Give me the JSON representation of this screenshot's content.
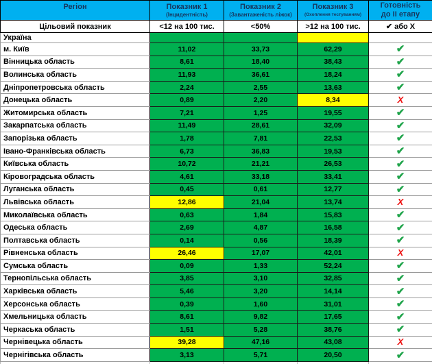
{
  "colors": {
    "header-bg": "#00B0F0",
    "header-text": "#17365D",
    "green": "#00B050",
    "yellow": "#FFFF00",
    "gray": "#BFBFBF",
    "check": "#1FA44A",
    "cross": "#EE1111"
  },
  "marks": {
    "check": "✔",
    "cross": "Х"
  },
  "table": {
    "headers": {
      "region": "Регіон",
      "col1_title": "Показник 1",
      "col1_sub": "(Інцидентність)",
      "col2_title": "Показник 2",
      "col2_sub": "(Завантаженість ліжок)",
      "col3_title": "Показник 3",
      "col3_sub": "(Охоплення тестуванням)",
      "ready_line1": "Готовність",
      "ready_line2": "до ІІ етапу"
    },
    "target_row": {
      "label": "Цільовий показник",
      "v1": "<12 на 100 тис.",
      "v2": "<50%",
      "v3": ">12 на 100 тис.",
      "ready": "✔ або Х"
    },
    "rows": [
      {
        "region": "Україна",
        "v1": "",
        "v1_bg": "green",
        "v2": "",
        "v2_bg": "green",
        "v3": "",
        "v3_bg": "yellow",
        "ready": "gray"
      },
      {
        "region": "м. Київ",
        "v1": "11,02",
        "v1_bg": "green",
        "v2": "33,73",
        "v2_bg": "green",
        "v3": "62,29",
        "v3_bg": "green",
        "ready": "check"
      },
      {
        "region": "Вінницька область",
        "v1": "8,61",
        "v1_bg": "green",
        "v2": "18,40",
        "v2_bg": "green",
        "v3": "38,43",
        "v3_bg": "green",
        "ready": "check"
      },
      {
        "region": "Волинська область",
        "v1": "11,93",
        "v1_bg": "green",
        "v2": "36,61",
        "v2_bg": "green",
        "v3": "18,24",
        "v3_bg": "green",
        "ready": "check"
      },
      {
        "region": "Дніпропетровська область",
        "v1": "2,24",
        "v1_bg": "green",
        "v2": "2,55",
        "v2_bg": "green",
        "v3": "13,63",
        "v3_bg": "green",
        "ready": "check"
      },
      {
        "region": "Донецька область",
        "v1": "0,89",
        "v1_bg": "green",
        "v2": "2,20",
        "v2_bg": "green",
        "v3": "8,34",
        "v3_bg": "yellow",
        "ready": "cross"
      },
      {
        "region": "Житомирська область",
        "v1": "7,21",
        "v1_bg": "green",
        "v2": "1,25",
        "v2_bg": "green",
        "v3": "19,55",
        "v3_bg": "green",
        "ready": "check"
      },
      {
        "region": "Закарпатська область",
        "v1": "11,49",
        "v1_bg": "green",
        "v2": "28,61",
        "v2_bg": "green",
        "v3": "32,09",
        "v3_bg": "green",
        "ready": "check"
      },
      {
        "region": "Запорізька область",
        "v1": "1,78",
        "v1_bg": "green",
        "v2": "7,81",
        "v2_bg": "green",
        "v3": "22,53",
        "v3_bg": "green",
        "ready": "check"
      },
      {
        "region": "Івано-Франківська область",
        "v1": "6,73",
        "v1_bg": "green",
        "v2": "36,83",
        "v2_bg": "green",
        "v3": "19,53",
        "v3_bg": "green",
        "ready": "check"
      },
      {
        "region": "Київська область",
        "v1": "10,72",
        "v1_bg": "green",
        "v2": "21,21",
        "v2_bg": "green",
        "v3": "26,53",
        "v3_bg": "green",
        "ready": "check"
      },
      {
        "region": "Кіровоградська область",
        "v1": "4,61",
        "v1_bg": "green",
        "v2": "33,18",
        "v2_bg": "green",
        "v3": "33,41",
        "v3_bg": "green",
        "ready": "check"
      },
      {
        "region": "Луганська область",
        "v1": "0,45",
        "v1_bg": "green",
        "v2": "0,61",
        "v2_bg": "green",
        "v3": "12,77",
        "v3_bg": "green",
        "ready": "check"
      },
      {
        "region": "Львівська область",
        "v1": "12,86",
        "v1_bg": "yellow",
        "v2": "21,04",
        "v2_bg": "green",
        "v3": "13,74",
        "v3_bg": "green",
        "ready": "cross"
      },
      {
        "region": "Миколаївська область",
        "v1": "0,63",
        "v1_bg": "green",
        "v2": "1,84",
        "v2_bg": "green",
        "v3": "15,83",
        "v3_bg": "green",
        "ready": "check"
      },
      {
        "region": "Одеська область",
        "v1": "2,69",
        "v1_bg": "green",
        "v2": "4,87",
        "v2_bg": "green",
        "v3": "16,58",
        "v3_bg": "green",
        "ready": "check"
      },
      {
        "region": "Полтавська область",
        "v1": "0,14",
        "v1_bg": "green",
        "v2": "0,56",
        "v2_bg": "green",
        "v3": "18,39",
        "v3_bg": "green",
        "ready": "check"
      },
      {
        "region": "Рівненська область",
        "v1": "26,46",
        "v1_bg": "yellow",
        "v2": "17,07",
        "v2_bg": "green",
        "v3": "42,01",
        "v3_bg": "green",
        "ready": "cross"
      },
      {
        "region": "Сумська область",
        "v1": "0,09",
        "v1_bg": "green",
        "v2": "1,33",
        "v2_bg": "green",
        "v3": "52,24",
        "v3_bg": "green",
        "ready": "check"
      },
      {
        "region": "Тернопільська область",
        "v1": "3,85",
        "v1_bg": "green",
        "v2": "3,10",
        "v2_bg": "green",
        "v3": "32,85",
        "v3_bg": "green",
        "ready": "check"
      },
      {
        "region": "Харківська область",
        "v1": "5,46",
        "v1_bg": "green",
        "v2": "3,20",
        "v2_bg": "green",
        "v3": "14,14",
        "v3_bg": "green",
        "ready": "check"
      },
      {
        "region": "Херсонська область",
        "v1": "0,39",
        "v1_bg": "green",
        "v2": "1,60",
        "v2_bg": "green",
        "v3": "31,01",
        "v3_bg": "green",
        "ready": "check"
      },
      {
        "region": "Хмельницька область",
        "v1": "8,61",
        "v1_bg": "green",
        "v2": "9,82",
        "v2_bg": "green",
        "v3": "17,65",
        "v3_bg": "green",
        "ready": "check"
      },
      {
        "region": "Черкаська область",
        "v1": "1,51",
        "v1_bg": "green",
        "v2": "5,28",
        "v2_bg": "green",
        "v3": "38,76",
        "v3_bg": "green",
        "ready": "check"
      },
      {
        "region": "Чернівецька область",
        "v1": "39,28",
        "v1_bg": "yellow",
        "v2": "47,16",
        "v2_bg": "green",
        "v3": "43,08",
        "v3_bg": "green",
        "ready": "cross"
      },
      {
        "region": "Чернігівська область",
        "v1": "3,13",
        "v1_bg": "green",
        "v2": "5,71",
        "v2_bg": "green",
        "v3": "20,50",
        "v3_bg": "green",
        "ready": "check"
      }
    ]
  }
}
